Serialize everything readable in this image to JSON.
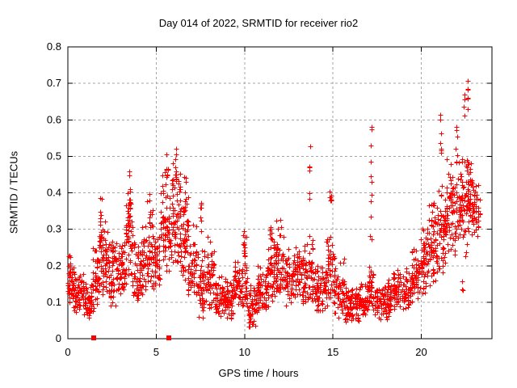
{
  "chart_data": {
    "type": "scatter",
    "title": "Day 014 of 2022, SRMTID for receiver rio2",
    "xlabel": "GPS time / hours",
    "ylabel": "SRMTID / TECUs",
    "xlim": [
      0,
      24
    ],
    "ylim": [
      0,
      0.8
    ],
    "xticks": [
      0,
      5,
      10,
      15,
      20
    ],
    "yticks": [
      0,
      0.1,
      0.2,
      0.3,
      0.4,
      0.5,
      0.6,
      0.7,
      0.8
    ],
    "grid": true,
    "legend": "none",
    "marker": "plus-cross",
    "colors": {
      "points": "#ff0000",
      "grid": "#a6a6a6",
      "axis": "#000000",
      "text": "#000000",
      "background": "#ffffff"
    },
    "points_note": "Dense 30s-cadence scatter (~2600 pts, 0 to 23.3 h). cloud_bands = bulk envelope [t_start,t_end,y_min,y_max,count]; spikes = narrow vertical streaks [t_center,y_min,y_max,count]; baseline_squares = filled red squares on the x-axis [t,y].",
    "cloud_bands": [
      [
        0.0,
        0.35,
        0.09,
        0.27,
        45
      ],
      [
        0.35,
        0.9,
        0.06,
        0.2,
        60
      ],
      [
        0.9,
        1.4,
        0.05,
        0.17,
        55
      ],
      [
        1.4,
        1.75,
        0.08,
        0.26,
        40
      ],
      [
        1.75,
        1.95,
        0.14,
        0.36,
        24
      ],
      [
        1.95,
        2.4,
        0.1,
        0.33,
        50
      ],
      [
        2.4,
        2.9,
        0.09,
        0.3,
        55
      ],
      [
        2.9,
        3.3,
        0.11,
        0.3,
        45
      ],
      [
        3.3,
        3.65,
        0.15,
        0.44,
        45
      ],
      [
        3.65,
        4.2,
        0.09,
        0.28,
        55
      ],
      [
        4.2,
        4.45,
        0.12,
        0.36,
        28
      ],
      [
        4.45,
        4.8,
        0.12,
        0.4,
        35
      ],
      [
        4.8,
        5.25,
        0.12,
        0.3,
        48
      ],
      [
        5.25,
        5.85,
        0.17,
        0.47,
        70
      ],
      [
        5.85,
        6.35,
        0.2,
        0.5,
        65
      ],
      [
        6.35,
        6.8,
        0.15,
        0.43,
        50
      ],
      [
        6.8,
        7.3,
        0.09,
        0.33,
        52
      ],
      [
        7.3,
        7.85,
        0.04,
        0.26,
        55
      ],
      [
        7.85,
        8.3,
        0.07,
        0.3,
        48
      ],
      [
        8.3,
        9.4,
        0.05,
        0.18,
        115
      ],
      [
        9.4,
        9.8,
        0.07,
        0.24,
        42
      ],
      [
        9.8,
        10.15,
        0.08,
        0.3,
        38
      ],
      [
        10.15,
        10.7,
        0.03,
        0.15,
        55
      ],
      [
        10.7,
        11.3,
        0.07,
        0.22,
        62
      ],
      [
        11.3,
        11.75,
        0.1,
        0.32,
        48
      ],
      [
        11.75,
        12.3,
        0.1,
        0.34,
        58
      ],
      [
        12.3,
        13.4,
        0.09,
        0.27,
        115
      ],
      [
        13.4,
        13.95,
        0.08,
        0.3,
        55
      ],
      [
        13.95,
        14.6,
        0.07,
        0.22,
        65
      ],
      [
        14.6,
        15.05,
        0.08,
        0.3,
        45
      ],
      [
        15.05,
        15.7,
        0.05,
        0.24,
        60
      ],
      [
        15.7,
        16.5,
        0.04,
        0.16,
        80
      ],
      [
        16.5,
        17.05,
        0.06,
        0.16,
        55
      ],
      [
        17.05,
        17.35,
        0.07,
        0.22,
        30
      ],
      [
        17.35,
        18.4,
        0.05,
        0.17,
        105
      ],
      [
        18.4,
        19.4,
        0.08,
        0.2,
        100
      ],
      [
        19.4,
        19.9,
        0.1,
        0.26,
        55
      ],
      [
        19.9,
        20.4,
        0.12,
        0.32,
        55
      ],
      [
        20.4,
        20.9,
        0.14,
        0.4,
        58
      ],
      [
        20.9,
        21.4,
        0.17,
        0.46,
        60
      ],
      [
        21.4,
        21.9,
        0.22,
        0.5,
        62
      ],
      [
        21.9,
        22.4,
        0.26,
        0.52,
        62
      ],
      [
        22.4,
        22.9,
        0.28,
        0.52,
        60
      ],
      [
        22.9,
        23.3,
        0.27,
        0.44,
        42
      ]
    ],
    "spikes": [
      [
        1.85,
        0.25,
        0.39,
        8
      ],
      [
        3.5,
        0.3,
        0.465,
        14
      ],
      [
        4.65,
        0.3,
        0.42,
        8
      ],
      [
        5.62,
        0.42,
        0.52,
        8
      ],
      [
        6.1,
        0.42,
        0.52,
        10
      ],
      [
        6.62,
        0.35,
        0.45,
        8
      ],
      [
        7.5,
        0.26,
        0.385,
        7
      ],
      [
        9.95,
        0.24,
        0.315,
        6
      ],
      [
        11.45,
        0.25,
        0.33,
        6
      ],
      [
        13.7,
        0.36,
        0.53,
        6
      ],
      [
        14.85,
        0.37,
        0.42,
        7
      ],
      [
        17.15,
        0.26,
        0.645,
        11
      ],
      [
        21.1,
        0.5,
        0.62,
        7
      ],
      [
        22.0,
        0.5,
        0.58,
        5
      ],
      [
        22.35,
        0.13,
        0.17,
        3
      ],
      [
        22.4,
        0.6,
        0.67,
        4
      ],
      [
        22.55,
        0.21,
        0.26,
        3
      ],
      [
        22.62,
        0.6,
        0.72,
        7
      ],
      [
        22.8,
        0.42,
        0.47,
        4
      ]
    ],
    "baseline_squares": [
      [
        1.45,
        0
      ],
      [
        5.7,
        0
      ]
    ],
    "seed": 20220114
  }
}
